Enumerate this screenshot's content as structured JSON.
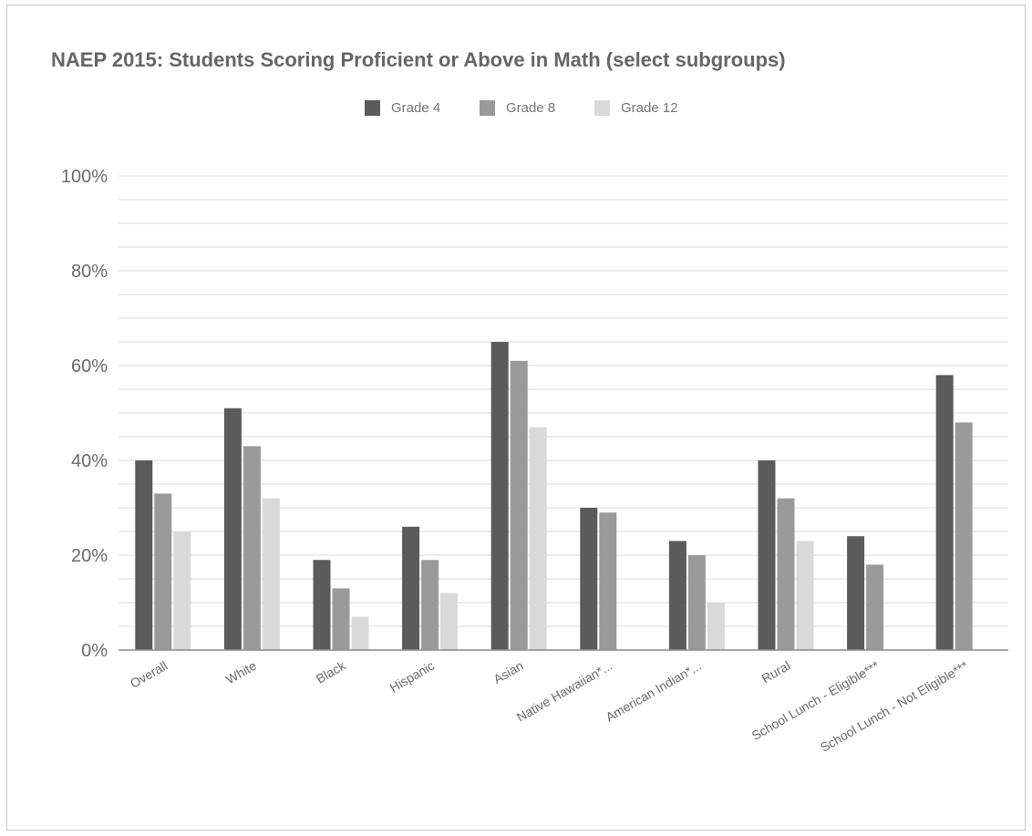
{
  "chart_data": {
    "type": "bar",
    "title": "NAEP 2015: Students Scoring Proficient or Above in Math (select subgroups)",
    "xlabel": "",
    "ylabel": "",
    "ylim": [
      0,
      100
    ],
    "yticks": [
      "0%",
      "20%",
      "40%",
      "60%",
      "80%",
      "100%"
    ],
    "ytick_values": [
      0,
      20,
      40,
      60,
      80,
      100
    ],
    "minor_grid_step": 5,
    "grid": true,
    "legend_position": "top-center",
    "categories": [
      "Overall",
      "White",
      "Black",
      "Hispanic",
      "Asian",
      "Native Hawaiian*...",
      "American Indian*...",
      "Rural",
      "School Lunch - Eligible***",
      "School Lunch - Not Eligible***"
    ],
    "series": [
      {
        "name": "Grade 4",
        "color": "#5b5b5b",
        "values": [
          40,
          51,
          19,
          26,
          65,
          30,
          23,
          40,
          24,
          58
        ]
      },
      {
        "name": "Grade 8",
        "color": "#9a9a9a",
        "values": [
          33,
          43,
          13,
          19,
          61,
          29,
          20,
          32,
          18,
          48
        ]
      },
      {
        "name": "Grade 12",
        "color": "#d9d9d9",
        "values": [
          25,
          32,
          7,
          12,
          47,
          null,
          10,
          23,
          null,
          null
        ]
      }
    ]
  },
  "colors": {
    "gridline": "#e2e2e2",
    "baseline": "#8c8c8c",
    "text": "#6a6a6a"
  }
}
